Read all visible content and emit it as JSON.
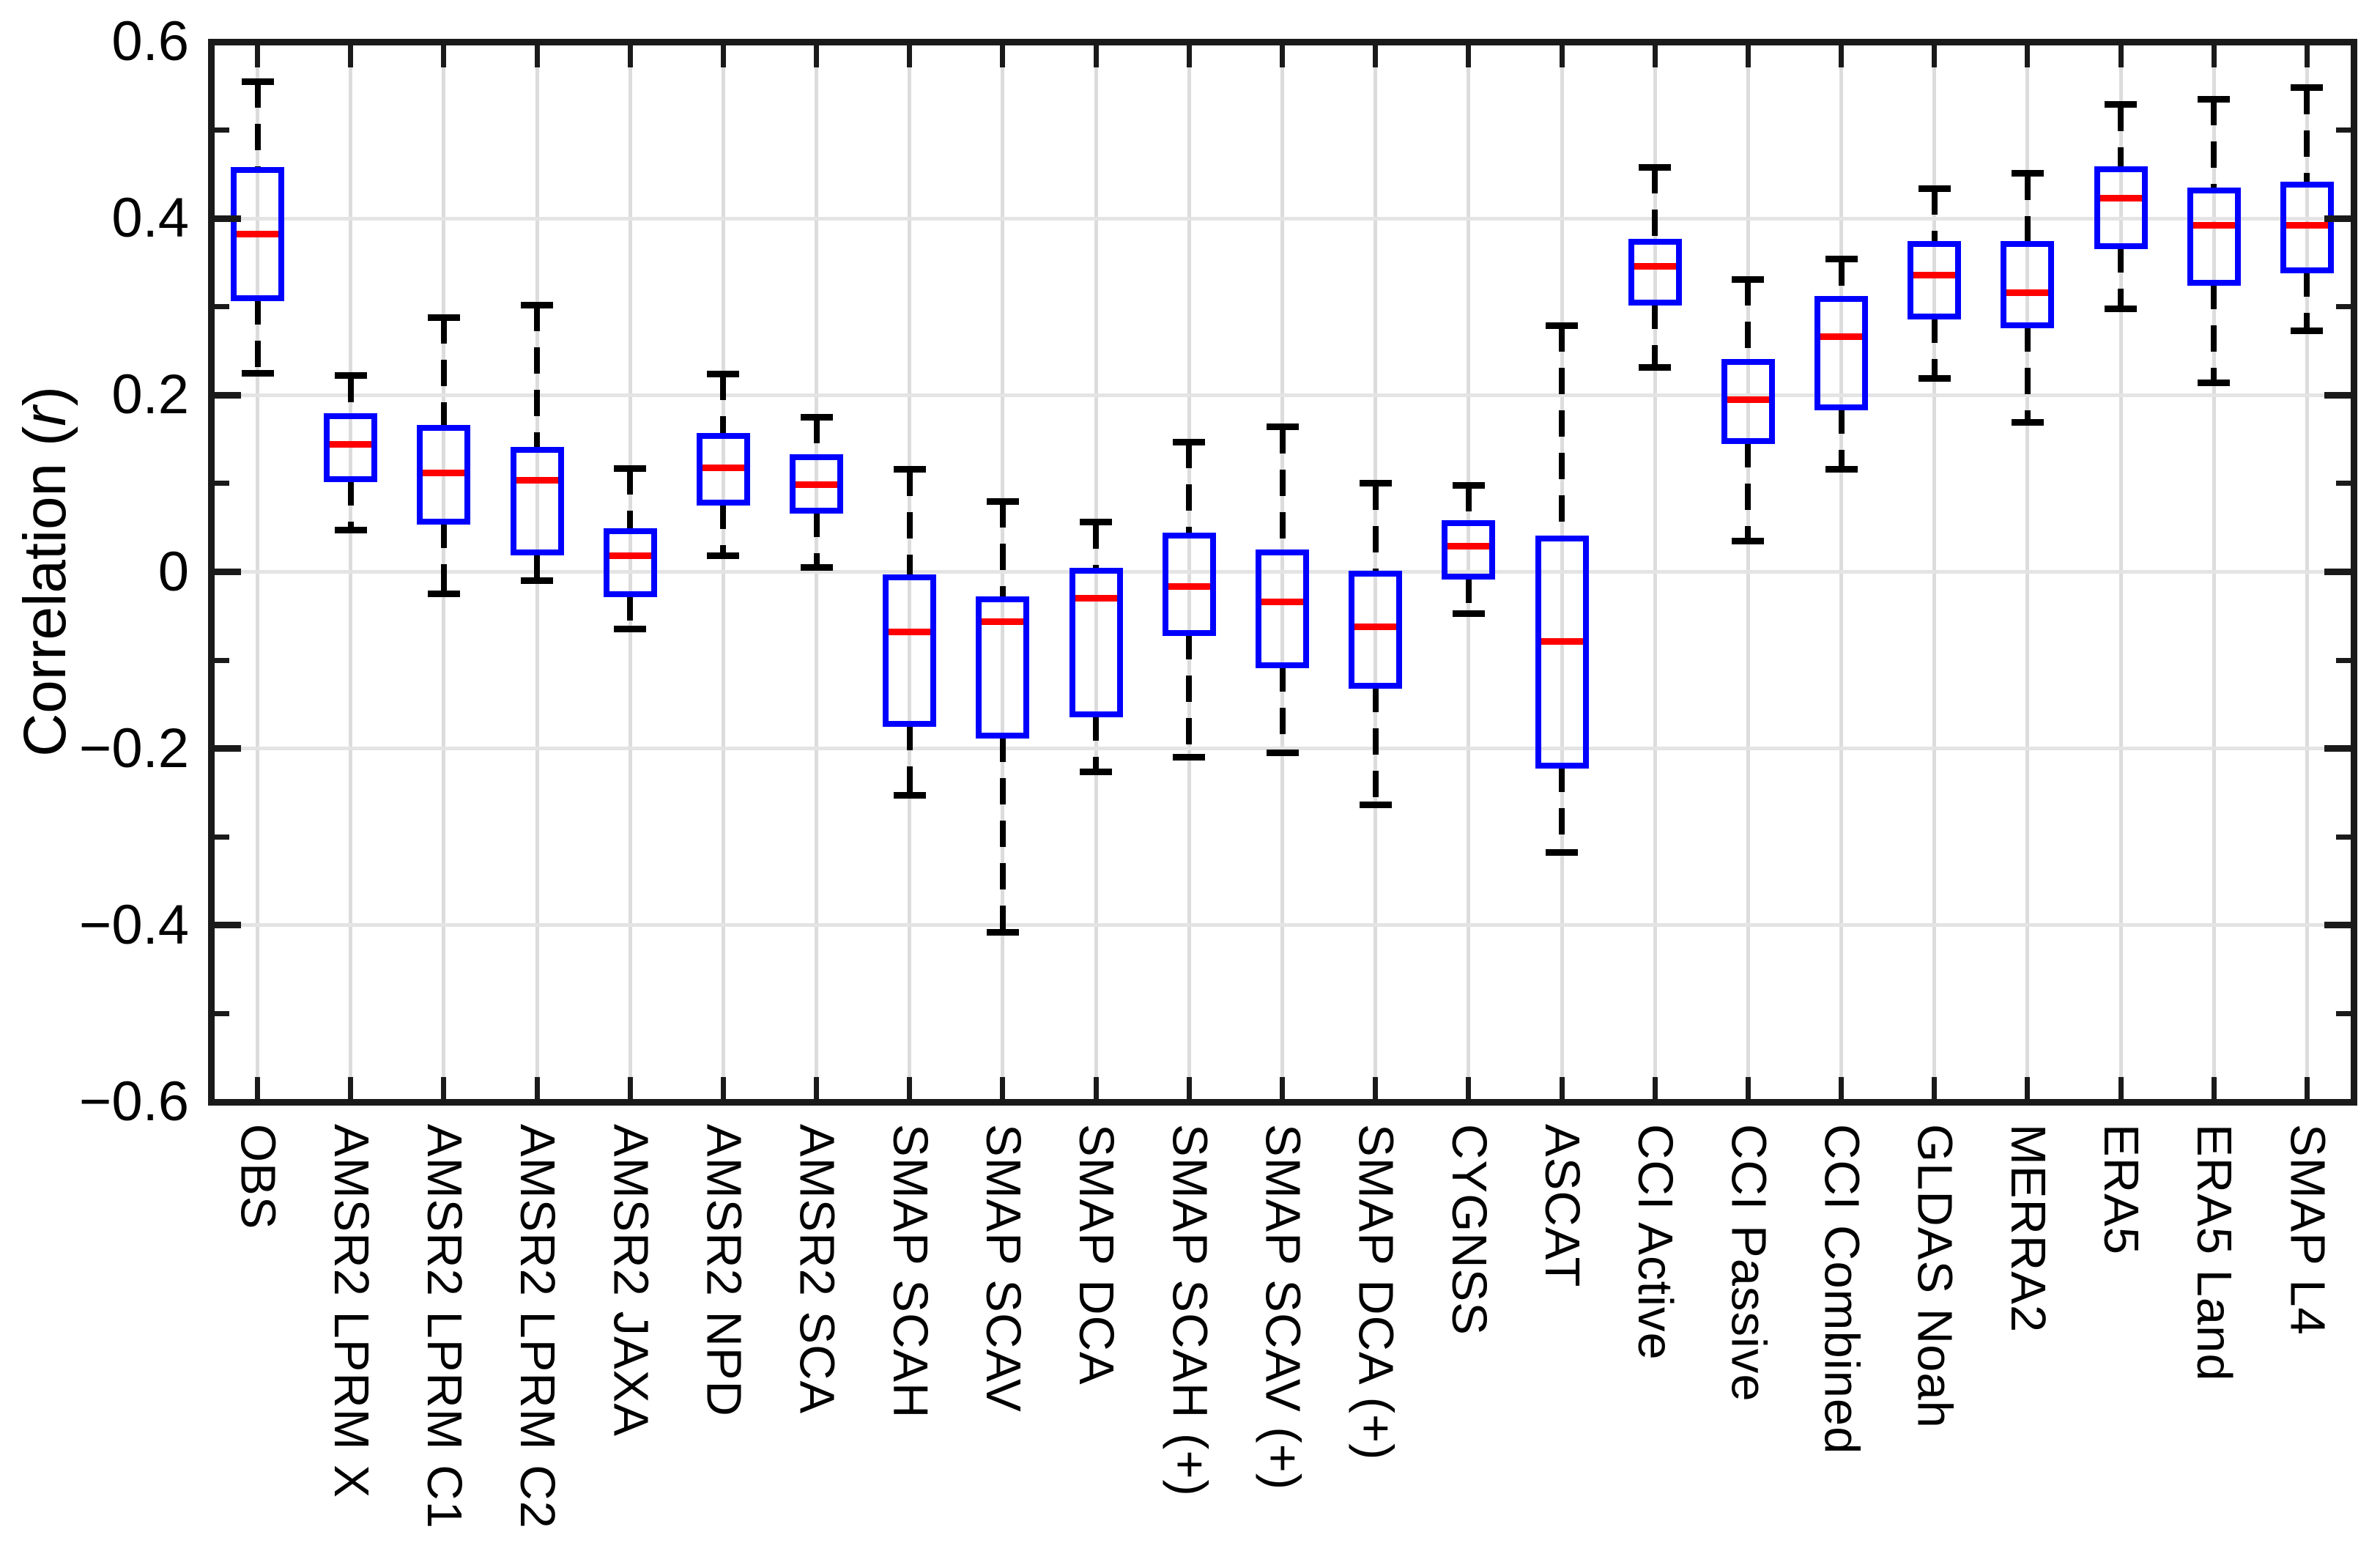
{
  "chart_data": {
    "type": "boxplot",
    "title": "",
    "ylabel": {
      "pre": "Correlation (",
      "var": "r",
      "post": ")"
    },
    "ylim": [
      -0.6,
      0.6
    ],
    "grid": true,
    "legend": "none",
    "y_major_ticks": [
      {
        "value": 0.6,
        "label": "0.6"
      },
      {
        "value": 0.4,
        "label": "0.4"
      },
      {
        "value": 0.2,
        "label": "0.2"
      },
      {
        "value": 0.0,
        "label": "0"
      },
      {
        "value": -0.2,
        "label": "−0.2"
      },
      {
        "value": -0.4,
        "label": "−0.4"
      },
      {
        "value": -0.6,
        "label": "−0.6"
      }
    ],
    "y_minor_ticks": [
      0.5,
      0.3,
      0.1,
      -0.1,
      -0.3,
      -0.5
    ],
    "categories": [
      "OBS",
      "AMSR2 LPRM X",
      "AMSR2 LPRM C1",
      "AMSR2 LPRM C2",
      "AMSR2 JAXA",
      "AMSR2 NPD",
      "AMSR2 SCA",
      "SMAP SCAH",
      "SMAP SCAV",
      "SMAP DCA",
      "SMAP SCAH (+)",
      "SMAP SCAV (+)",
      "SMAP DCA (+)",
      "CYGNSS",
      "ASCAT",
      "CCI Active",
      "CCI Passive",
      "CCI Combined",
      "GLDAS Noah",
      "MERRA2",
      "ERA5",
      "ERA5 Land",
      "SMAP L4"
    ],
    "boxes": [
      {
        "label": "OBS",
        "whislo": 0.225,
        "q1": 0.31,
        "med": 0.382,
        "q3": 0.455,
        "whishi": 0.555
      },
      {
        "label": "AMSR2 LPRM X",
        "whislo": 0.047,
        "q1": 0.105,
        "med": 0.144,
        "q3": 0.176,
        "whishi": 0.222
      },
      {
        "label": "AMSR2 LPRM C1",
        "whislo": -0.025,
        "q1": 0.057,
        "med": 0.112,
        "q3": 0.163,
        "whishi": 0.288
      },
      {
        "label": "AMSR2 LPRM C2",
        "whislo": -0.01,
        "q1": 0.022,
        "med": 0.104,
        "q3": 0.138,
        "whishi": 0.302
      },
      {
        "label": "AMSR2 JAXA",
        "whislo": -0.065,
        "q1": -0.025,
        "med": 0.018,
        "q3": 0.046,
        "whishi": 0.117
      },
      {
        "label": "AMSR2 NPD",
        "whislo": 0.018,
        "q1": 0.078,
        "med": 0.118,
        "q3": 0.154,
        "whishi": 0.224
      },
      {
        "label": "AMSR2 SCA",
        "whislo": 0.005,
        "q1": 0.069,
        "med": 0.099,
        "q3": 0.13,
        "whishi": 0.175
      },
      {
        "label": "SMAP SCAH",
        "whislo": -0.253,
        "q1": -0.172,
        "med": -0.068,
        "q3": -0.006,
        "whishi": 0.116
      },
      {
        "label": "SMAP SCAV",
        "whislo": -0.408,
        "q1": -0.185,
        "med": -0.056,
        "q3": -0.031,
        "whishi": 0.08
      },
      {
        "label": "SMAP DCA",
        "whislo": -0.226,
        "q1": -0.161,
        "med": -0.03,
        "q3": 0.001,
        "whishi": 0.056
      },
      {
        "label": "SMAP SCAH (+)",
        "whislo": -0.21,
        "q1": -0.069,
        "med": -0.017,
        "q3": 0.041,
        "whishi": 0.147
      },
      {
        "label": "SMAP SCAV (+)",
        "whislo": -0.205,
        "q1": -0.106,
        "med": -0.034,
        "q3": 0.022,
        "whishi": 0.164
      },
      {
        "label": "SMAP DCA (+)",
        "whislo": -0.264,
        "q1": -0.129,
        "med": -0.062,
        "q3": -0.002,
        "whishi": 0.1
      },
      {
        "label": "CYGNSS",
        "whislo": -0.047,
        "q1": -0.005,
        "med": 0.029,
        "q3": 0.055,
        "whishi": 0.098
      },
      {
        "label": "ASCAT",
        "whislo": -0.318,
        "q1": -0.219,
        "med": -0.079,
        "q3": 0.038,
        "whishi": 0.279
      },
      {
        "label": "CCI Active",
        "whislo": 0.231,
        "q1": 0.305,
        "med": 0.346,
        "q3": 0.374,
        "whishi": 0.458
      },
      {
        "label": "CCI Passive",
        "whislo": 0.035,
        "q1": 0.148,
        "med": 0.195,
        "q3": 0.238,
        "whishi": 0.331
      },
      {
        "label": "CCI Combined",
        "whislo": 0.116,
        "q1": 0.186,
        "med": 0.266,
        "q3": 0.309,
        "whishi": 0.354
      },
      {
        "label": "GLDAS Noah",
        "whislo": 0.219,
        "q1": 0.289,
        "med": 0.336,
        "q3": 0.371,
        "whishi": 0.434
      },
      {
        "label": "MERRA2",
        "whislo": 0.169,
        "q1": 0.279,
        "med": 0.316,
        "q3": 0.371,
        "whishi": 0.451
      },
      {
        "label": "ERA5",
        "whislo": 0.298,
        "q1": 0.369,
        "med": 0.423,
        "q3": 0.456,
        "whishi": 0.529
      },
      {
        "label": "ERA5 Land",
        "whislo": 0.214,
        "q1": 0.327,
        "med": 0.392,
        "q3": 0.432,
        "whishi": 0.535
      },
      {
        "label": "SMAP L4",
        "whislo": 0.273,
        "q1": 0.341,
        "med": 0.392,
        "q3": 0.438,
        "whishi": 0.548
      }
    ],
    "colors": {
      "box": "#0000ff",
      "median": "#ff0000",
      "whisker": "#000000",
      "axis": "#1a1a1a",
      "grid_horizontal": "#e4e4e4",
      "grid_vertical": "#dcdcdc",
      "background": "#ffffff"
    }
  }
}
